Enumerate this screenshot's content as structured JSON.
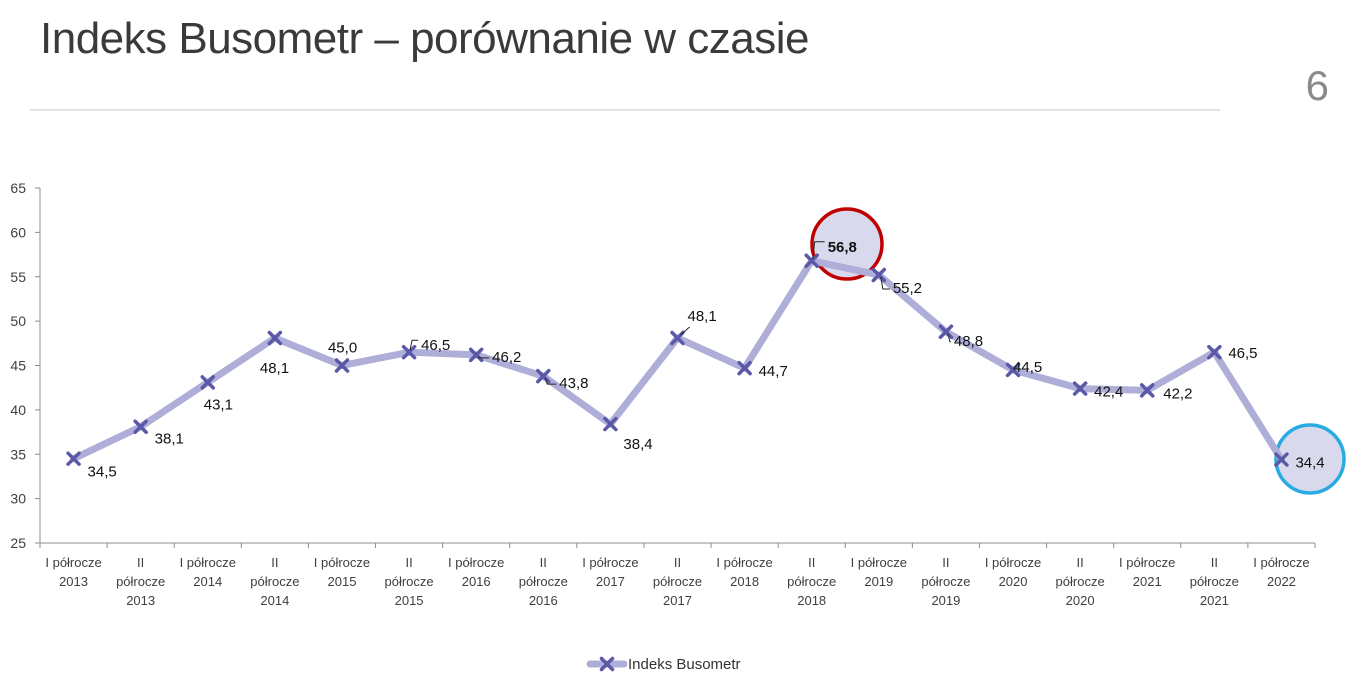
{
  "slide": {
    "title": "Indeks Busometr – porównanie w czasie",
    "page_number": "6"
  },
  "colors": {
    "line": "#aeaed8",
    "marker": "#5b58a8",
    "highlight_max": "#c00000",
    "highlight_last": "#29abe2",
    "highlight_fill": "#d9d9ee"
  },
  "chart_data": {
    "type": "line",
    "title": "",
    "xlabel": "",
    "ylabel": "",
    "ylim": [
      25,
      65
    ],
    "yticks": [
      25,
      30,
      35,
      40,
      45,
      50,
      55,
      60,
      65
    ],
    "grid": false,
    "legend_position": "bottom",
    "categories": [
      "I półrocze 2013",
      "II półrocze 2013",
      "I półrocze 2014",
      "II półrocze 2014",
      "I półrocze 2015",
      "II półrocze 2015",
      "I półrocze 2016",
      "II półrocze 2016",
      "I półrocze 2017",
      "II półrocze 2017",
      "I półrocze 2018",
      "II półrocze 2018",
      "I półrocze 2019",
      "II półrocze 2019",
      "I półrocze 2020",
      "II półrocze 2020",
      "I półrocze 2021",
      "II półrocze 2021",
      "I półrocze 2022"
    ],
    "category_lines": [
      [
        "I półrocze",
        "2013"
      ],
      [
        "II",
        "półrocze",
        "2013"
      ],
      [
        "I półrocze",
        "2014"
      ],
      [
        "II",
        "półrocze",
        "2014"
      ],
      [
        "I półrocze",
        "2015"
      ],
      [
        "II",
        "półrocze",
        "2015"
      ],
      [
        "I półrocze",
        "2016"
      ],
      [
        "II",
        "półrocze",
        "2016"
      ],
      [
        "I półrocze",
        "2017"
      ],
      [
        "II",
        "półrocze",
        "2017"
      ],
      [
        "I półrocze",
        "2018"
      ],
      [
        "II",
        "półrocze",
        "2018"
      ],
      [
        "I półrocze",
        "2019"
      ],
      [
        "II",
        "półrocze",
        "2019"
      ],
      [
        "I półrocze",
        "2020"
      ],
      [
        "II",
        "półrocze",
        "2020"
      ],
      [
        "I półrocze",
        "2021"
      ],
      [
        "II",
        "półrocze",
        "2021"
      ],
      [
        "I półrocze",
        "2022"
      ]
    ],
    "series": [
      {
        "name": "Indeks Busometr",
        "values": [
          34.5,
          38.1,
          43.1,
          48.1,
          45.0,
          46.5,
          46.2,
          43.8,
          38.4,
          48.1,
          44.7,
          56.8,
          55.2,
          48.8,
          44.5,
          42.4,
          42.2,
          46.5,
          34.4
        ],
        "labels": [
          "34,5",
          "38,1",
          "43,1",
          "48,1",
          "45,0",
          "46,5",
          "46,2",
          "43,8",
          "38,4",
          "48,1",
          "44,7",
          "56,8",
          "55,2",
          "48,8",
          "44,5",
          "42,4",
          "42,2",
          "46,5",
          "34,4"
        ]
      }
    ],
    "annotations": [
      {
        "type": "circle",
        "target_index": 11,
        "color": "#c00000",
        "note": "maximum 56,8 highlighted"
      },
      {
        "type": "circle",
        "target_index": 18,
        "color": "#29abe2",
        "note": "latest 34,4 highlighted"
      }
    ]
  }
}
